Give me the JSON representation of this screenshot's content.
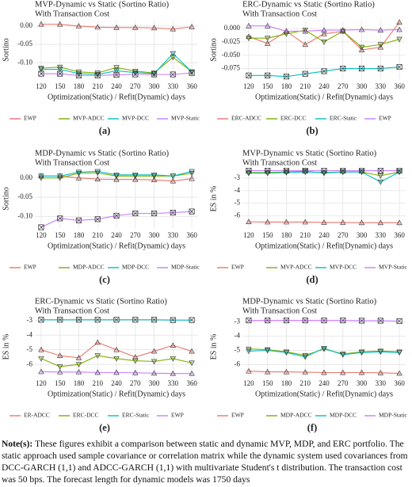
{
  "chart_data": [
    {
      "type": "line",
      "title": "MVP-Dynamic vs Static (Sortino Ratio)",
      "subtitle": "With Transaction Cost",
      "label": "(a)",
      "xlabel": "Optimization(Static) / Refit(Dynamic) days",
      "ylabel": "Sortino",
      "x": [
        120,
        150,
        180,
        210,
        240,
        270,
        300,
        330,
        360
      ],
      "xlim": [
        110,
        370
      ],
      "xticks": [
        120,
        150,
        180,
        210,
        240,
        270,
        300,
        330,
        360
      ],
      "ylim": [
        -0.145,
        0.015
      ],
      "yticks": [
        {
          "value": 0,
          "label": "0.00"
        },
        {
          "value": -0.05,
          "label": "-0.05"
        },
        {
          "value": -0.1,
          "label": "-0.10"
        }
      ],
      "grid": true,
      "series": [
        {
          "name": "EWP",
          "color": "#e8766d",
          "marker": "triangle-up",
          "values": [
            0.005,
            0.005,
            0.0,
            -0.003,
            -0.004,
            -0.004,
            -0.005,
            -0.008,
            -0.002
          ]
        },
        {
          "name": "MVP-ADCC",
          "color": "#7cae00",
          "marker": "triangle-down",
          "values": [
            -0.115,
            -0.112,
            -0.125,
            -0.128,
            -0.113,
            -0.123,
            -0.128,
            -0.085,
            -0.125
          ]
        },
        {
          "name": "MVP-DCC",
          "color": "#00bfc4",
          "marker": "triangle-down",
          "values": [
            -0.118,
            -0.118,
            -0.13,
            -0.132,
            -0.122,
            -0.127,
            -0.13,
            -0.075,
            -0.125
          ]
        },
        {
          "name": "MVP-Static",
          "color": "#c77cff",
          "marker": "square",
          "values": [
            -0.13,
            -0.13,
            -0.135,
            -0.135,
            -0.133,
            -0.132,
            -0.132,
            -0.132,
            -0.128
          ]
        }
      ]
    },
    {
      "type": "line",
      "title": "ERC-Dynamic vs Static (Sortino Ratio)",
      "subtitle": "With Transaction Cost",
      "label": "(b)",
      "xlabel": "Optimization(Static) / Refit(Dynamic) days",
      "ylabel": "Sortino",
      "x": [
        120,
        150,
        180,
        210,
        240,
        270,
        300,
        330,
        360
      ],
      "xlim": [
        110,
        370
      ],
      "xticks": [
        120,
        150,
        180,
        210,
        240,
        270,
        300,
        330,
        360
      ],
      "ylim": [
        -0.095,
        0.015
      ],
      "yticks": [
        {
          "value": 0,
          "label": "0.000"
        },
        {
          "value": -0.025,
          "label": "-0.025"
        },
        {
          "value": -0.05,
          "label": "-0.050"
        },
        {
          "value": -0.075,
          "label": "-0.075"
        }
      ],
      "grid": true,
      "series": [
        {
          "name": "ERC-ADCC",
          "color": "#e8766d",
          "marker": "triangle-up",
          "values": [
            -0.015,
            -0.028,
            -0.005,
            -0.03,
            -0.01,
            -0.005,
            -0.04,
            -0.035,
            0.012
          ]
        },
        {
          "name": "ERC-DCC",
          "color": "#7cae00",
          "marker": "triangle-down",
          "values": [
            -0.018,
            -0.018,
            -0.01,
            -0.003,
            -0.025,
            -0.005,
            -0.035,
            -0.03,
            -0.02
          ]
        },
        {
          "name": "ERC-Static",
          "color": "#00bfc4",
          "marker": "square",
          "values": [
            -0.088,
            -0.088,
            -0.09,
            -0.085,
            -0.08,
            -0.075,
            -0.075,
            -0.075,
            -0.072
          ]
        },
        {
          "name": "EWP",
          "color": "#c77cff",
          "marker": "triangle-up",
          "values": [
            0.005,
            0.005,
            -0.005,
            -0.005,
            -0.003,
            -0.003,
            -0.002,
            -0.003,
            -0.002
          ]
        }
      ]
    },
    {
      "type": "line",
      "title": "MDP-Dynamic vs Static (Sortino Ratio)",
      "subtitle": "With Transaction Cost",
      "label": "(c)",
      "xlabel": "Optimization(Static) / Refit(Dynamic) days",
      "ylabel": "Sortino",
      "x": [
        120,
        150,
        180,
        210,
        240,
        270,
        300,
        330,
        360
      ],
      "xlim": [
        110,
        370
      ],
      "xticks": [
        120,
        150,
        180,
        210,
        240,
        270,
        300,
        330,
        360
      ],
      "ylim": [
        -0.13,
        0.022
      ],
      "yticks": [
        {
          "value": 0,
          "label": "0.00"
        },
        {
          "value": -0.05,
          "label": "-0.05"
        },
        {
          "value": -0.1,
          "label": "-0.10"
        }
      ],
      "grid": true,
      "series": [
        {
          "name": "EWP",
          "color": "#e8766d",
          "marker": "triangle-up",
          "values": [
            0.005,
            0.005,
            0.0,
            -0.003,
            -0.004,
            -0.004,
            -0.005,
            -0.008,
            -0.002
          ]
        },
        {
          "name": "MDP-ADCC",
          "color": "#7cae00",
          "marker": "triangle-down",
          "values": [
            0.0,
            0.0,
            0.012,
            0.013,
            0.005,
            0.005,
            0.005,
            0.005,
            0.012
          ]
        },
        {
          "name": "MDP-DCC",
          "color": "#00bfc4",
          "marker": "triangle-down",
          "values": [
            0.005,
            0.005,
            0.015,
            0.017,
            0.008,
            0.008,
            0.008,
            0.005,
            0.017
          ]
        },
        {
          "name": "MDP-Static",
          "color": "#c77cff",
          "marker": "square",
          "values": [
            -0.128,
            -0.105,
            -0.11,
            -0.107,
            -0.098,
            -0.092,
            -0.092,
            -0.09,
            -0.087
          ]
        }
      ]
    },
    {
      "type": "line",
      "title": "MVP-Dynamic vs Static (Sortino Ratio)",
      "subtitle": "With Transaction Cost",
      "label": "(d)",
      "xlabel": "Optimization(Static) / Refit(Dynamic) days",
      "ylabel": "ES in %",
      "x": [
        120,
        150,
        180,
        210,
        240,
        270,
        300,
        330,
        360
      ],
      "xlim": [
        110,
        370
      ],
      "xticks": [
        120,
        150,
        180,
        210,
        240,
        270,
        300,
        330,
        360
      ],
      "ylim": [
        -7,
        -2.3
      ],
      "yticks": [
        -3,
        -4,
        -5,
        -6
      ],
      "grid": true,
      "series": [
        {
          "name": "EWP",
          "color": "#e8766d",
          "marker": "triangle-up",
          "values": [
            -6.5,
            -6.52,
            -6.52,
            -6.52,
            -6.55,
            -6.55,
            -6.57,
            -6.57,
            -6.57
          ]
        },
        {
          "name": "MVP-ADCC",
          "color": "#7cae00",
          "marker": "triangle-down",
          "values": [
            -2.55,
            -2.55,
            -2.5,
            -2.45,
            -2.6,
            -2.5,
            -2.5,
            -2.8,
            -2.5
          ]
        },
        {
          "name": "MVP-DCC",
          "color": "#00bfc4",
          "marker": "triangle-down",
          "values": [
            -2.6,
            -2.6,
            -2.55,
            -2.5,
            -2.55,
            -2.5,
            -2.5,
            -3.3,
            -2.5
          ]
        },
        {
          "name": "MVP-Static",
          "color": "#c77cff",
          "marker": "square",
          "values": [
            -2.4,
            -2.4,
            -2.4,
            -2.4,
            -2.4,
            -2.4,
            -2.4,
            -2.4,
            -2.4
          ]
        }
      ]
    },
    {
      "type": "line",
      "title": "ERC-Dynamic vs Static (Sortino Ratio)",
      "subtitle": "With Transaction Cost",
      "label": "(e)",
      "xlabel": "Optimization(Static) / Refit(Dynamic) days",
      "ylabel": "ES in %",
      "x": [
        120,
        150,
        180,
        210,
        240,
        270,
        300,
        330,
        360
      ],
      "xlim": [
        110,
        370
      ],
      "xticks": [
        120,
        150,
        180,
        210,
        240,
        270,
        300,
        330,
        360
      ],
      "ylim": [
        -6.8,
        -2.8
      ],
      "yticks": [
        -3,
        -4,
        -5,
        -6
      ],
      "grid": true,
      "series": [
        {
          "name": "ER-ADCC",
          "color": "#e8766d",
          "marker": "triangle-up",
          "values": [
            -5.0,
            -5.4,
            -5.55,
            -4.5,
            -5.0,
            -5.5,
            -5.1,
            -4.7,
            -5.1
          ]
        },
        {
          "name": "ERC-DCC",
          "color": "#7cae00",
          "marker": "triangle-down",
          "values": [
            -5.6,
            -6.15,
            -6.0,
            -5.4,
            -5.6,
            -5.75,
            -5.8,
            -5.6,
            -5.9
          ]
        },
        {
          "name": "ERC-Static",
          "color": "#00bfc4",
          "marker": "square",
          "values": [
            -2.95,
            -2.95,
            -2.95,
            -2.95,
            -2.95,
            -2.95,
            -2.95,
            -2.97,
            -2.97
          ]
        },
        {
          "name": "EWP",
          "color": "#c77cff",
          "marker": "triangle-up",
          "values": [
            -6.5,
            -6.52,
            -6.52,
            -6.55,
            -6.55,
            -6.57,
            -6.6,
            -6.62,
            -6.62
          ]
        }
      ]
    },
    {
      "type": "line",
      "title": "MDP-Dynamic vs Static (Sortino Ratio)",
      "subtitle": "With Transaction Cost",
      "label": "(f)",
      "xlabel": "Optimization(Static) / Refit(Dynamic) days",
      "ylabel": "ES in %",
      "x": [
        120,
        150,
        180,
        210,
        240,
        270,
        300,
        330,
        360
      ],
      "xlim": [
        110,
        370
      ],
      "xticks": [
        120,
        150,
        180,
        210,
        240,
        270,
        300,
        330,
        360
      ],
      "ylim": [
        -6.8,
        -2.7
      ],
      "yticks": [
        -3,
        -4,
        -5,
        -6
      ],
      "grid": true,
      "series": [
        {
          "name": "EWP",
          "color": "#e8766d",
          "marker": "triangle-up",
          "values": [
            -6.45,
            -6.5,
            -6.5,
            -6.52,
            -6.55,
            -6.55,
            -6.55,
            -6.57,
            -6.6
          ]
        },
        {
          "name": "MDP-ADCC",
          "color": "#7cae00",
          "marker": "triangle-down",
          "values": [
            -4.9,
            -4.95,
            -5.1,
            -5.35,
            -4.9,
            -5.25,
            -5.1,
            -5.05,
            -5.1
          ]
        },
        {
          "name": "MDP-DCC",
          "color": "#00bfc4",
          "marker": "triangle-down",
          "values": [
            -5.05,
            -5.0,
            -5.15,
            -5.45,
            -4.85,
            -5.3,
            -5.15,
            -5.1,
            -5.15
          ]
        },
        {
          "name": "MDP-Static",
          "color": "#c77cff",
          "marker": "square",
          "values": [
            -2.9,
            -2.9,
            -2.9,
            -2.9,
            -2.9,
            -2.9,
            -2.92,
            -2.92,
            -2.95
          ]
        }
      ]
    }
  ],
  "note": {
    "label": "Note(s):",
    "text": "These figures exhibit a comparison between static and dynamic MVP, MDP, and ERC portfolio. The static approach used sample covariance or correlation matrix while the dynamic system used covariances from DCC-GARCH (1,1) and ADCC-GARCH (1,1) with multivariate Student's t distribution. The transaction cost was 50 bps. The forecast length for dynamic models was 1750 days"
  }
}
